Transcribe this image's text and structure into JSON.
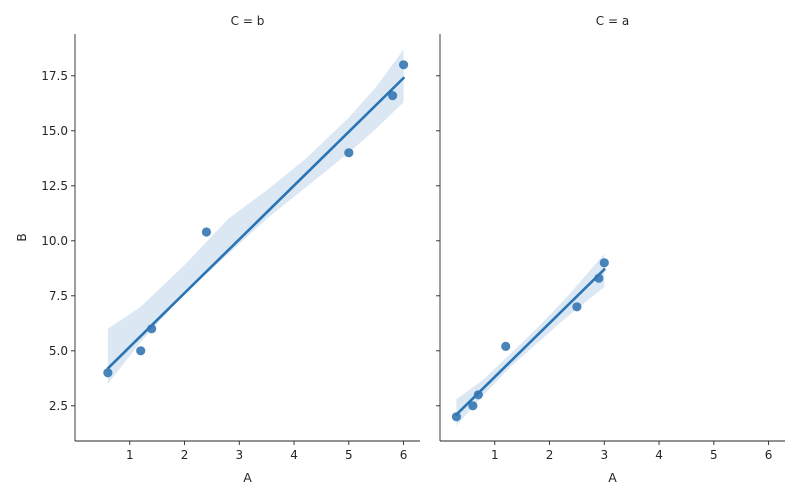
{
  "chart_data": {
    "type": "scatter",
    "facet_variable": "C",
    "shared_axes": {
      "xlabel": "A",
      "ylabel": "B",
      "xlim": [
        0.0,
        6.3
      ],
      "ylim": [
        0.9,
        19.4
      ],
      "xticks": [
        1,
        2,
        3,
        4,
        5,
        6
      ],
      "yticks": [
        2.5,
        5.0,
        7.5,
        10.0,
        12.5,
        15.0,
        17.5
      ],
      "ytick_labels": [
        "2.5",
        "5.0",
        "7.5",
        "10.0",
        "12.5",
        "15.0",
        "17.5"
      ]
    },
    "colors": {
      "points": "#3477b2",
      "line": "#2a74b4",
      "band": "#cfe0f0"
    },
    "panels": [
      {
        "title": "C = b",
        "points": [
          {
            "x": 0.6,
            "y": 4.0
          },
          {
            "x": 1.2,
            "y": 5.0
          },
          {
            "x": 1.4,
            "y": 6.0
          },
          {
            "x": 2.4,
            "y": 10.4
          },
          {
            "x": 5.0,
            "y": 14.0
          },
          {
            "x": 5.8,
            "y": 16.6
          },
          {
            "x": 6.0,
            "y": 18.0
          }
        ],
        "regression": {
          "x_start": 0.6,
          "y_start": 4.2,
          "x_end": 6.0,
          "y_end": 17.4
        },
        "ci_band": [
          {
            "x": 0.6,
            "lo": 3.5,
            "hi": 6.0
          },
          {
            "x": 1.2,
            "lo": 5.4,
            "hi": 7.0
          },
          {
            "x": 2.0,
            "lo": 7.6,
            "hi": 8.9
          },
          {
            "x": 2.8,
            "lo": 9.4,
            "hi": 11.0
          },
          {
            "x": 3.5,
            "lo": 11.0,
            "hi": 12.3
          },
          {
            "x": 4.2,
            "lo": 12.4,
            "hi": 13.7
          },
          {
            "x": 5.0,
            "lo": 14.0,
            "hi": 15.6
          },
          {
            "x": 5.5,
            "lo": 15.1,
            "hi": 17.0
          },
          {
            "x": 6.0,
            "lo": 16.3,
            "hi": 18.7
          }
        ]
      },
      {
        "title": "C = a",
        "points": [
          {
            "x": 0.3,
            "y": 2.0
          },
          {
            "x": 0.6,
            "y": 2.5
          },
          {
            "x": 0.7,
            "y": 3.0
          },
          {
            "x": 1.2,
            "y": 5.2
          },
          {
            "x": 2.5,
            "y": 7.0
          },
          {
            "x": 2.9,
            "y": 8.3
          },
          {
            "x": 3.0,
            "y": 9.0
          }
        ],
        "regression": {
          "x_start": 0.3,
          "y_start": 2.1,
          "x_end": 3.0,
          "y_end": 8.7
        },
        "ci_band": [
          {
            "x": 0.3,
            "lo": 1.6,
            "hi": 2.8
          },
          {
            "x": 0.8,
            "lo": 3.0,
            "hi": 3.7
          },
          {
            "x": 1.3,
            "lo": 4.3,
            "hi": 4.9
          },
          {
            "x": 1.8,
            "lo": 5.4,
            "hi": 6.1
          },
          {
            "x": 2.3,
            "lo": 6.5,
            "hi": 7.4
          },
          {
            "x": 3.0,
            "lo": 7.9,
            "hi": 9.4
          }
        ]
      }
    ]
  }
}
